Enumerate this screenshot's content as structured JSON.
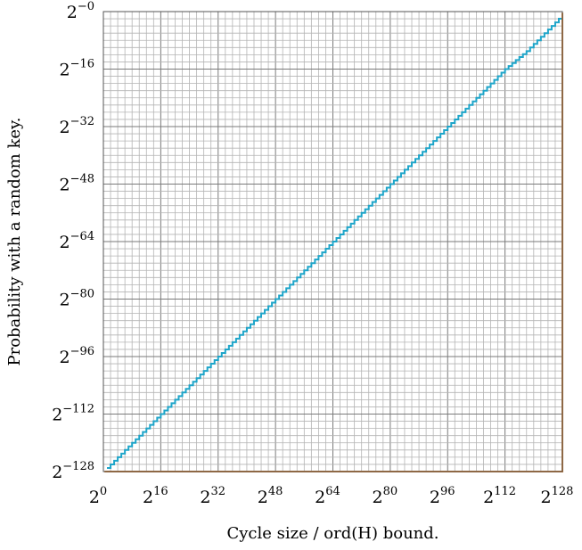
{
  "chart_data": {
    "type": "line",
    "title": "",
    "xlabel": "Cycle size / ord(H) bound.",
    "ylabel": "Probability with a random key.",
    "x_scale": "log2",
    "y_scale": "log2",
    "xlim": [
      0,
      128
    ],
    "ylim": [
      -128,
      0
    ],
    "grid": true,
    "x_ticks": [
      {
        "base": "2",
        "exp": "0"
      },
      {
        "base": "2",
        "exp": "16"
      },
      {
        "base": "2",
        "exp": "32"
      },
      {
        "base": "2",
        "exp": "48"
      },
      {
        "base": "2",
        "exp": "64"
      },
      {
        "base": "2",
        "exp": "80"
      },
      {
        "base": "2",
        "exp": "96"
      },
      {
        "base": "2",
        "exp": "112"
      },
      {
        "base": "2",
        "exp": "128"
      }
    ],
    "y_ticks": [
      {
        "base": "2",
        "exp": "−0"
      },
      {
        "base": "2",
        "exp": "−16"
      },
      {
        "base": "2",
        "exp": "−32"
      },
      {
        "base": "2",
        "exp": "−48"
      },
      {
        "base": "2",
        "exp": "−64"
      },
      {
        "base": "2",
        "exp": "−80"
      },
      {
        "base": "2",
        "exp": "−96"
      },
      {
        "base": "2",
        "exp": "−112"
      },
      {
        "base": "2",
        "exp": "−128"
      }
    ],
    "series": [
      {
        "color": "#1ea5c9",
        "x": [
          1,
          2,
          4,
          8,
          16,
          24,
          32,
          40,
          48,
          56,
          64,
          72,
          80,
          88,
          96,
          104,
          112,
          118,
          122,
          124,
          126,
          127,
          128
        ],
        "y": [
          -127,
          -126,
          -124,
          -120,
          -112,
          -104,
          -96,
          -88,
          -80,
          -72,
          -64,
          -56,
          -48,
          -40,
          -32,
          -24,
          -16,
          -11,
          -7,
          -5,
          -3,
          -2,
          -1
        ]
      },
      {
        "color": "#c77a35",
        "x": [
          0.3,
          128,
          128
        ],
        "y": [
          -128,
          -128,
          -0.3
        ]
      }
    ]
  }
}
